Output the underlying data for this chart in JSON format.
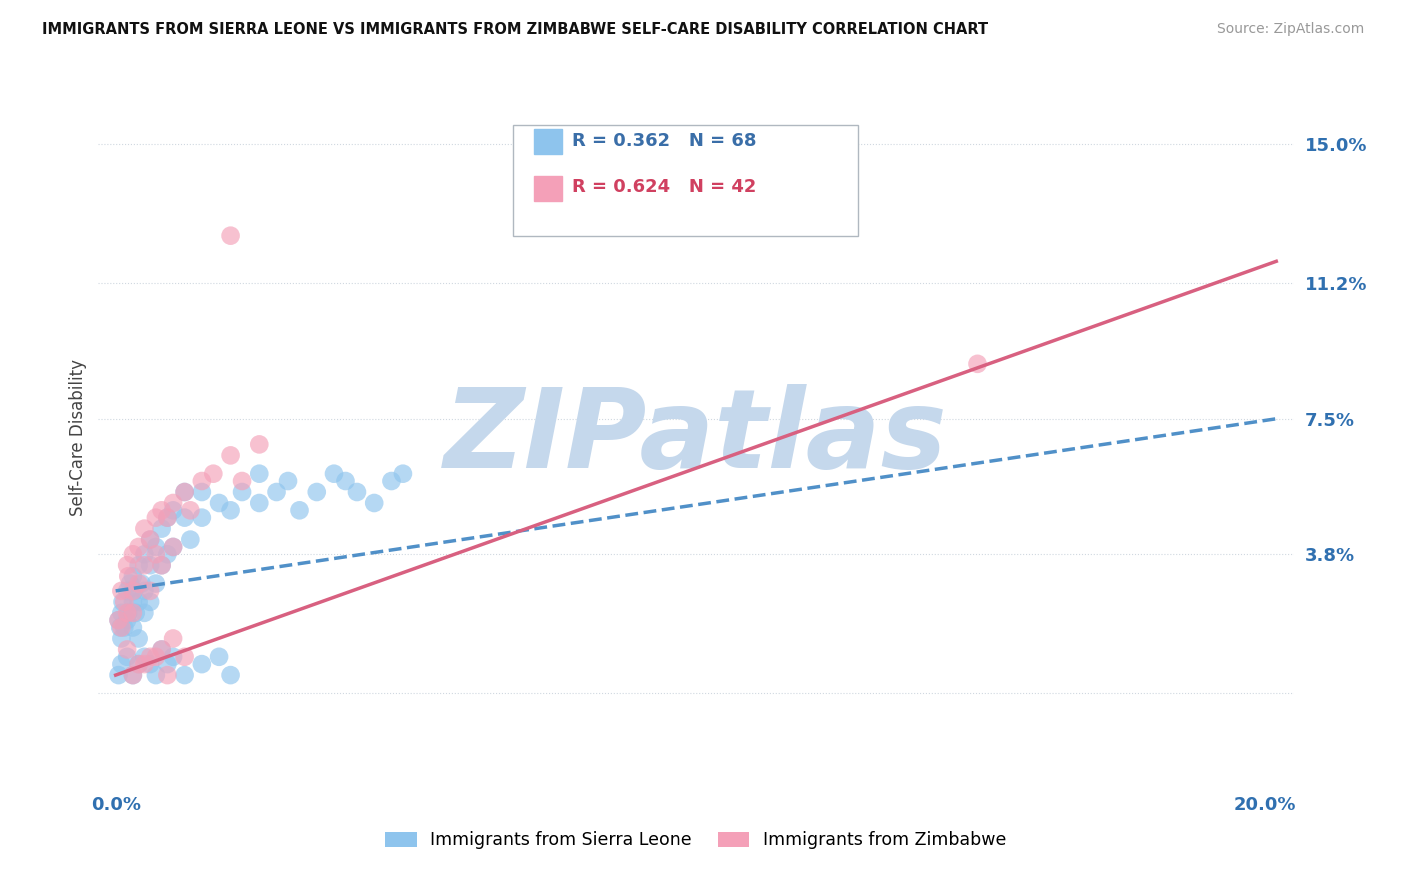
{
  "title": "IMMIGRANTS FROM SIERRA LEONE VS IMMIGRANTS FROM ZIMBABWE SELF-CARE DISABILITY CORRELATION CHART",
  "source": "Source: ZipAtlas.com",
  "ylabel": "Self-Care Disability",
  "yticks": [
    0.0,
    0.038,
    0.075,
    0.112,
    0.15
  ],
  "ytick_labels": [
    "",
    "3.8%",
    "7.5%",
    "11.2%",
    "15.0%"
  ],
  "xlim": [
    -0.003,
    0.205
  ],
  "ylim": [
    -0.025,
    0.165
  ],
  "series1_label": "Immigrants from Sierra Leone",
  "series1_R": "0.362",
  "series1_N": "68",
  "series1_color": "#8ec4ed",
  "series1_line_color": "#5090c8",
  "series2_label": "Immigrants from Zimbabwe",
  "series2_R": "0.624",
  "series2_N": "42",
  "series2_color": "#f4a0b8",
  "series2_line_color": "#d86080",
  "watermark": "ZIPatlas",
  "watermark_color_zip": "#c5d8ec",
  "watermark_color_atlas": "#b0c8e0",
  "background_color": "#ffffff",
  "grid_color": "#d0d8e0",
  "legend_R_color": "#3a6ea8",
  "legend_N_color": "#d04060",
  "sl_line_start_y": 0.028,
  "sl_line_end_y": 0.075,
  "zw_line_start_y": 0.005,
  "zw_line_end_y": 0.118,
  "sierra_leone_x": [
    0.0005,
    0.0008,
    0.001,
    0.001,
    0.0012,
    0.0015,
    0.002,
    0.002,
    0.0022,
    0.0025,
    0.003,
    0.003,
    0.003,
    0.0032,
    0.0035,
    0.004,
    0.004,
    0.004,
    0.0045,
    0.005,
    0.005,
    0.005,
    0.006,
    0.006,
    0.006,
    0.007,
    0.007,
    0.008,
    0.008,
    0.009,
    0.009,
    0.01,
    0.01,
    0.012,
    0.012,
    0.013,
    0.015,
    0.015,
    0.018,
    0.02,
    0.022,
    0.025,
    0.025,
    0.028,
    0.03,
    0.032,
    0.035,
    0.038,
    0.04,
    0.042,
    0.045,
    0.048,
    0.05,
    0.0005,
    0.001,
    0.002,
    0.003,
    0.004,
    0.005,
    0.006,
    0.007,
    0.008,
    0.009,
    0.01,
    0.012,
    0.015,
    0.018,
    0.02
  ],
  "sierra_leone_y": [
    0.02,
    0.018,
    0.022,
    0.015,
    0.025,
    0.018,
    0.028,
    0.02,
    0.022,
    0.03,
    0.025,
    0.032,
    0.018,
    0.028,
    0.022,
    0.035,
    0.025,
    0.015,
    0.03,
    0.038,
    0.028,
    0.022,
    0.035,
    0.025,
    0.042,
    0.04,
    0.03,
    0.045,
    0.035,
    0.048,
    0.038,
    0.05,
    0.04,
    0.048,
    0.055,
    0.042,
    0.055,
    0.048,
    0.052,
    0.05,
    0.055,
    0.052,
    0.06,
    0.055,
    0.058,
    0.05,
    0.055,
    0.06,
    0.058,
    0.055,
    0.052,
    0.058,
    0.06,
    0.005,
    0.008,
    0.01,
    0.005,
    0.008,
    0.01,
    0.008,
    0.005,
    0.012,
    0.008,
    0.01,
    0.005,
    0.008,
    0.01,
    0.005
  ],
  "zimbabwe_x": [
    0.0005,
    0.001,
    0.001,
    0.0015,
    0.002,
    0.002,
    0.0022,
    0.003,
    0.003,
    0.003,
    0.004,
    0.004,
    0.005,
    0.005,
    0.006,
    0.006,
    0.007,
    0.007,
    0.008,
    0.008,
    0.009,
    0.01,
    0.01,
    0.012,
    0.013,
    0.015,
    0.017,
    0.02,
    0.022,
    0.025,
    0.003,
    0.005,
    0.007,
    0.009,
    0.002,
    0.004,
    0.006,
    0.008,
    0.01,
    0.012,
    0.15,
    0.02
  ],
  "zimbabwe_y": [
    0.02,
    0.018,
    0.028,
    0.025,
    0.035,
    0.022,
    0.032,
    0.038,
    0.028,
    0.022,
    0.04,
    0.03,
    0.045,
    0.035,
    0.042,
    0.028,
    0.048,
    0.038,
    0.05,
    0.035,
    0.048,
    0.052,
    0.04,
    0.055,
    0.05,
    0.058,
    0.06,
    0.065,
    0.058,
    0.068,
    0.005,
    0.008,
    0.01,
    0.005,
    0.012,
    0.008,
    0.01,
    0.012,
    0.015,
    0.01,
    0.09,
    0.125
  ]
}
